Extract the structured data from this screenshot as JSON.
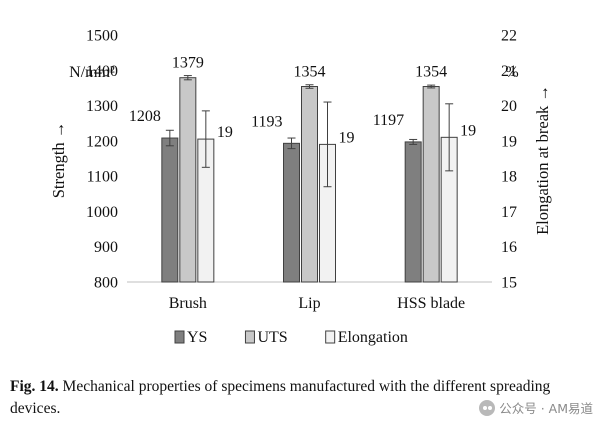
{
  "chart_data": {
    "type": "bar",
    "categories": [
      "Brush",
      "Lip",
      "HSS blade"
    ],
    "series": [
      {
        "name": "YS",
        "axis": "left",
        "color": "#7f7f7f",
        "values": [
          1208,
          1193,
          1197
        ],
        "errors": [
          22,
          15,
          7
        ],
        "labels": [
          "1208",
          "1193",
          "1197"
        ]
      },
      {
        "name": "UTS",
        "axis": "left",
        "color": "#c8c8c8",
        "values": [
          1379,
          1354,
          1354
        ],
        "errors": [
          6,
          5,
          4
        ],
        "labels": [
          "1379",
          "1354",
          "1354"
        ]
      },
      {
        "name": "Elongation",
        "axis": "right",
        "color": "#f2f2f2",
        "values": [
          19.05,
          18.9,
          19.1
        ],
        "errors": [
          0.8,
          1.2,
          0.95
        ],
        "labels": [
          "19",
          "19",
          "19"
        ]
      }
    ],
    "left_axis": {
      "label": "Strength →",
      "unit": "N/mm²",
      "ylim": [
        800,
        1500
      ],
      "ticks": [
        800,
        900,
        1000,
        1100,
        1200,
        1300,
        1400,
        1500
      ]
    },
    "right_axis": {
      "label": "Elongation at break →",
      "unit": "%",
      "ylim": [
        15,
        22
      ],
      "ticks": [
        15,
        16,
        17,
        18,
        19,
        20,
        21,
        22
      ]
    },
    "grid": false,
    "legend_position": "bottom"
  },
  "caption": {
    "label": "Fig. 14.",
    "text": "Mechanical properties of specimens manufactured with the different spreading devices."
  },
  "watermark": {
    "text": "公众号 · AM易道",
    "icon": "wechat-icon"
  }
}
